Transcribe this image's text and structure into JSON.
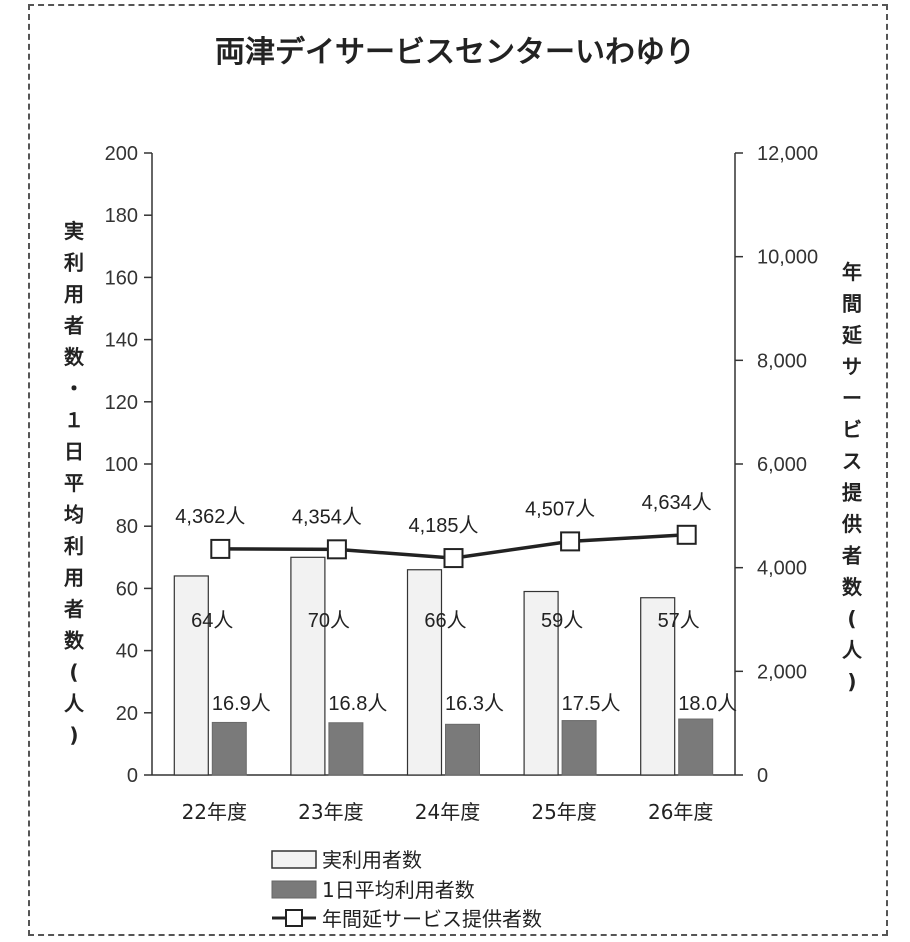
{
  "chart_data": {
    "type": "bar",
    "title": "両津デイサービスセンターいわゆり",
    "categories": [
      "22年度",
      "23年度",
      "24年度",
      "25年度",
      "26年度"
    ],
    "ylabel": "実利用者数・１日平均利用者数(人)",
    "y2label": "年間延サービス提供者数(人)",
    "ylim": [
      0,
      200
    ],
    "y2lim": [
      0,
      12000
    ],
    "yticks": [
      "0",
      "20",
      "40",
      "60",
      "80",
      "100",
      "120",
      "140",
      "160",
      "180",
      "200"
    ],
    "y2ticks": [
      "0",
      "2,000",
      "4,000",
      "6,000",
      "8,000",
      "10,000",
      "12,000"
    ],
    "series": [
      {
        "name": "実利用者数",
        "kind": "bar",
        "axis": "left",
        "color": "#f2f2f2",
        "values": [
          64,
          70,
          66,
          59,
          57
        ],
        "labels": [
          "64人",
          "70人",
          "66人",
          "59人",
          "57人"
        ]
      },
      {
        "name": "1日平均利用者数",
        "kind": "bar",
        "axis": "left",
        "color": "#7a7a7a",
        "values": [
          16.9,
          16.8,
          16.3,
          17.5,
          18.0
        ],
        "labels": [
          "16.9人",
          "16.8人",
          "16.3人",
          "17.5人",
          "18.0人"
        ]
      },
      {
        "name": "年間延サービス提供者数",
        "kind": "line",
        "axis": "right",
        "color": "#222222",
        "values": [
          4362,
          4354,
          4185,
          4507,
          4634
        ],
        "labels": [
          "4,362人",
          "4,354人",
          "4,185人",
          "4,507人",
          "4,634人"
        ]
      }
    ],
    "legend_position": "bottom",
    "grid": false
  }
}
